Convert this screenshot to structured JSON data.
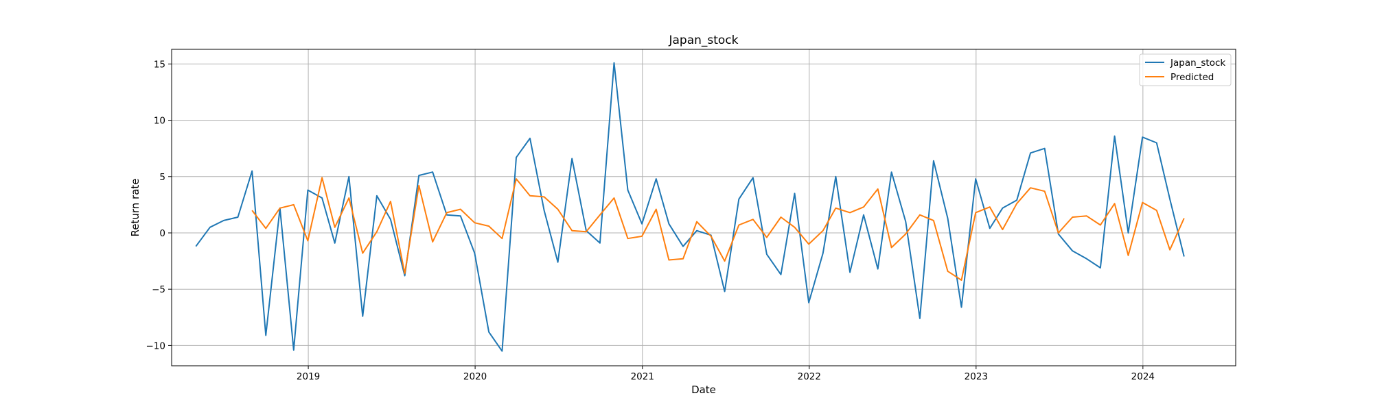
{
  "chart_data": {
    "type": "line",
    "title": "Japan_stock",
    "xlabel": "Date",
    "ylabel": "Return rate",
    "grid": true,
    "legend_position": "top-right",
    "xlim": [
      "2018-03-08",
      "2024-07-22"
    ],
    "ylim": [
      -11.8,
      16.3
    ],
    "x_ticks": [
      {
        "date": "2019-01-01",
        "label": "2019"
      },
      {
        "date": "2020-01-01",
        "label": "2020"
      },
      {
        "date": "2021-01-01",
        "label": "2021"
      },
      {
        "date": "2022-01-01",
        "label": "2022"
      },
      {
        "date": "2023-01-01",
        "label": "2023"
      },
      {
        "date": "2024-01-01",
        "label": "2024"
      }
    ],
    "y_ticks": [
      {
        "value": 15,
        "label": "15"
      },
      {
        "value": 10,
        "label": "10"
      },
      {
        "value": 5,
        "label": "5"
      },
      {
        "value": 0,
        "label": "0"
      },
      {
        "value": -5,
        "label": "−5"
      },
      {
        "value": -10,
        "label": "−10"
      }
    ],
    "series": [
      {
        "name": "Japan_stock",
        "color": "#1f77b4",
        "x": [
          "2018-04-30",
          "2018-05-31",
          "2018-06-30",
          "2018-07-31",
          "2018-08-31",
          "2018-09-30",
          "2018-10-31",
          "2018-11-30",
          "2018-12-31",
          "2019-01-31",
          "2019-02-28",
          "2019-03-31",
          "2019-04-30",
          "2019-05-31",
          "2019-06-30",
          "2019-07-31",
          "2019-08-31",
          "2019-09-30",
          "2019-10-31",
          "2019-11-30",
          "2019-12-31",
          "2020-01-31",
          "2020-02-29",
          "2020-03-31",
          "2020-04-30",
          "2020-05-31",
          "2020-06-30",
          "2020-07-31",
          "2020-08-31",
          "2020-09-30",
          "2020-10-31",
          "2020-11-30",
          "2020-12-31",
          "2021-01-31",
          "2021-02-28",
          "2021-03-31",
          "2021-04-30",
          "2021-05-31",
          "2021-06-30",
          "2021-07-31",
          "2021-08-31",
          "2021-09-30",
          "2021-10-31",
          "2021-11-30",
          "2021-12-31",
          "2022-01-31",
          "2022-02-28",
          "2022-03-31",
          "2022-04-30",
          "2022-05-31",
          "2022-06-30",
          "2022-07-31",
          "2022-08-31",
          "2022-09-30",
          "2022-10-31",
          "2022-11-30",
          "2022-12-31",
          "2023-01-31",
          "2023-02-28",
          "2023-03-31",
          "2023-04-30",
          "2023-05-31",
          "2023-06-30",
          "2023-07-31",
          "2023-08-31",
          "2023-09-30",
          "2023-10-31",
          "2023-11-30",
          "2023-12-31",
          "2024-01-31",
          "2024-02-29",
          "2024-03-31"
        ],
        "values": [
          -1.2,
          0.5,
          1.1,
          1.4,
          5.5,
          -9.1,
          2.2,
          -10.4,
          3.8,
          3.1,
          -0.9,
          5.0,
          -7.4,
          3.3,
          1.2,
          -3.8,
          5.1,
          5.4,
          1.6,
          1.5,
          -1.8,
          -8.8,
          -10.5,
          6.7,
          8.4,
          2.0,
          -2.6,
          6.6,
          0.2,
          -0.9,
          15.1,
          3.8,
          0.8,
          4.8,
          0.8,
          -1.2,
          0.2,
          -0.2,
          -5.2,
          3.0,
          4.9,
          -1.9,
          -3.7,
          3.5,
          -6.2,
          -1.8,
          5.0,
          -3.5,
          1.6,
          -3.2,
          5.4,
          1.0,
          -7.6,
          6.4,
          1.3,
          -6.6,
          4.8,
          0.4,
          2.2,
          2.9,
          7.1,
          7.5,
          -0.1,
          -1.6,
          -2.3,
          -3.1,
          8.6,
          0.0,
          8.5,
          8.0,
          3.0,
          -2.1
        ]
      },
      {
        "name": "Predicted",
        "color": "#ff7f0e",
        "x": [
          "2018-08-31",
          "2018-09-30",
          "2018-10-31",
          "2018-11-30",
          "2018-12-31",
          "2019-01-31",
          "2019-02-28",
          "2019-03-31",
          "2019-04-30",
          "2019-05-31",
          "2019-06-30",
          "2019-07-31",
          "2019-08-31",
          "2019-09-30",
          "2019-10-31",
          "2019-11-30",
          "2019-12-31",
          "2020-01-31",
          "2020-02-29",
          "2020-03-31",
          "2020-04-30",
          "2020-05-31",
          "2020-06-30",
          "2020-07-31",
          "2020-08-31",
          "2020-09-30",
          "2020-10-31",
          "2020-11-30",
          "2020-12-31",
          "2021-01-31",
          "2021-02-28",
          "2021-03-31",
          "2021-04-30",
          "2021-05-31",
          "2021-06-30",
          "2021-07-31",
          "2021-08-31",
          "2021-09-30",
          "2021-10-31",
          "2021-11-30",
          "2021-12-31",
          "2022-01-31",
          "2022-02-28",
          "2022-03-31",
          "2022-04-30",
          "2022-05-31",
          "2022-06-30",
          "2022-07-31",
          "2022-08-31",
          "2022-09-30",
          "2022-10-31",
          "2022-11-30",
          "2022-12-31",
          "2023-01-31",
          "2023-02-28",
          "2023-03-31",
          "2023-04-30",
          "2023-05-31",
          "2023-06-30",
          "2023-07-31",
          "2023-08-31",
          "2023-09-30",
          "2023-10-31",
          "2023-11-30",
          "2023-12-31",
          "2024-01-31",
          "2024-02-29",
          "2024-03-31"
        ],
        "values": [
          2.0,
          0.4,
          2.2,
          2.5,
          -0.7,
          4.9,
          0.5,
          3.1,
          -1.8,
          0.1,
          2.8,
          -3.6,
          4.2,
          -0.8,
          1.8,
          2.1,
          0.9,
          0.6,
          -0.5,
          4.8,
          3.3,
          3.2,
          2.1,
          0.2,
          0.1,
          1.6,
          3.1,
          -0.5,
          -0.3,
          2.1,
          -2.4,
          -2.3,
          1.0,
          -0.3,
          -2.5,
          0.7,
          1.2,
          -0.4,
          1.4,
          0.5,
          -1.0,
          0.2,
          2.2,
          1.8,
          2.3,
          3.9,
          -1.3,
          -0.1,
          1.6,
          1.1,
          -3.4,
          -4.2,
          1.8,
          2.3,
          0.3,
          2.6,
          4.0,
          3.7,
          0.0,
          1.4,
          1.5,
          0.7,
          2.6,
          -2.0,
          2.7,
          2.0,
          -1.5,
          1.3
        ]
      }
    ]
  }
}
